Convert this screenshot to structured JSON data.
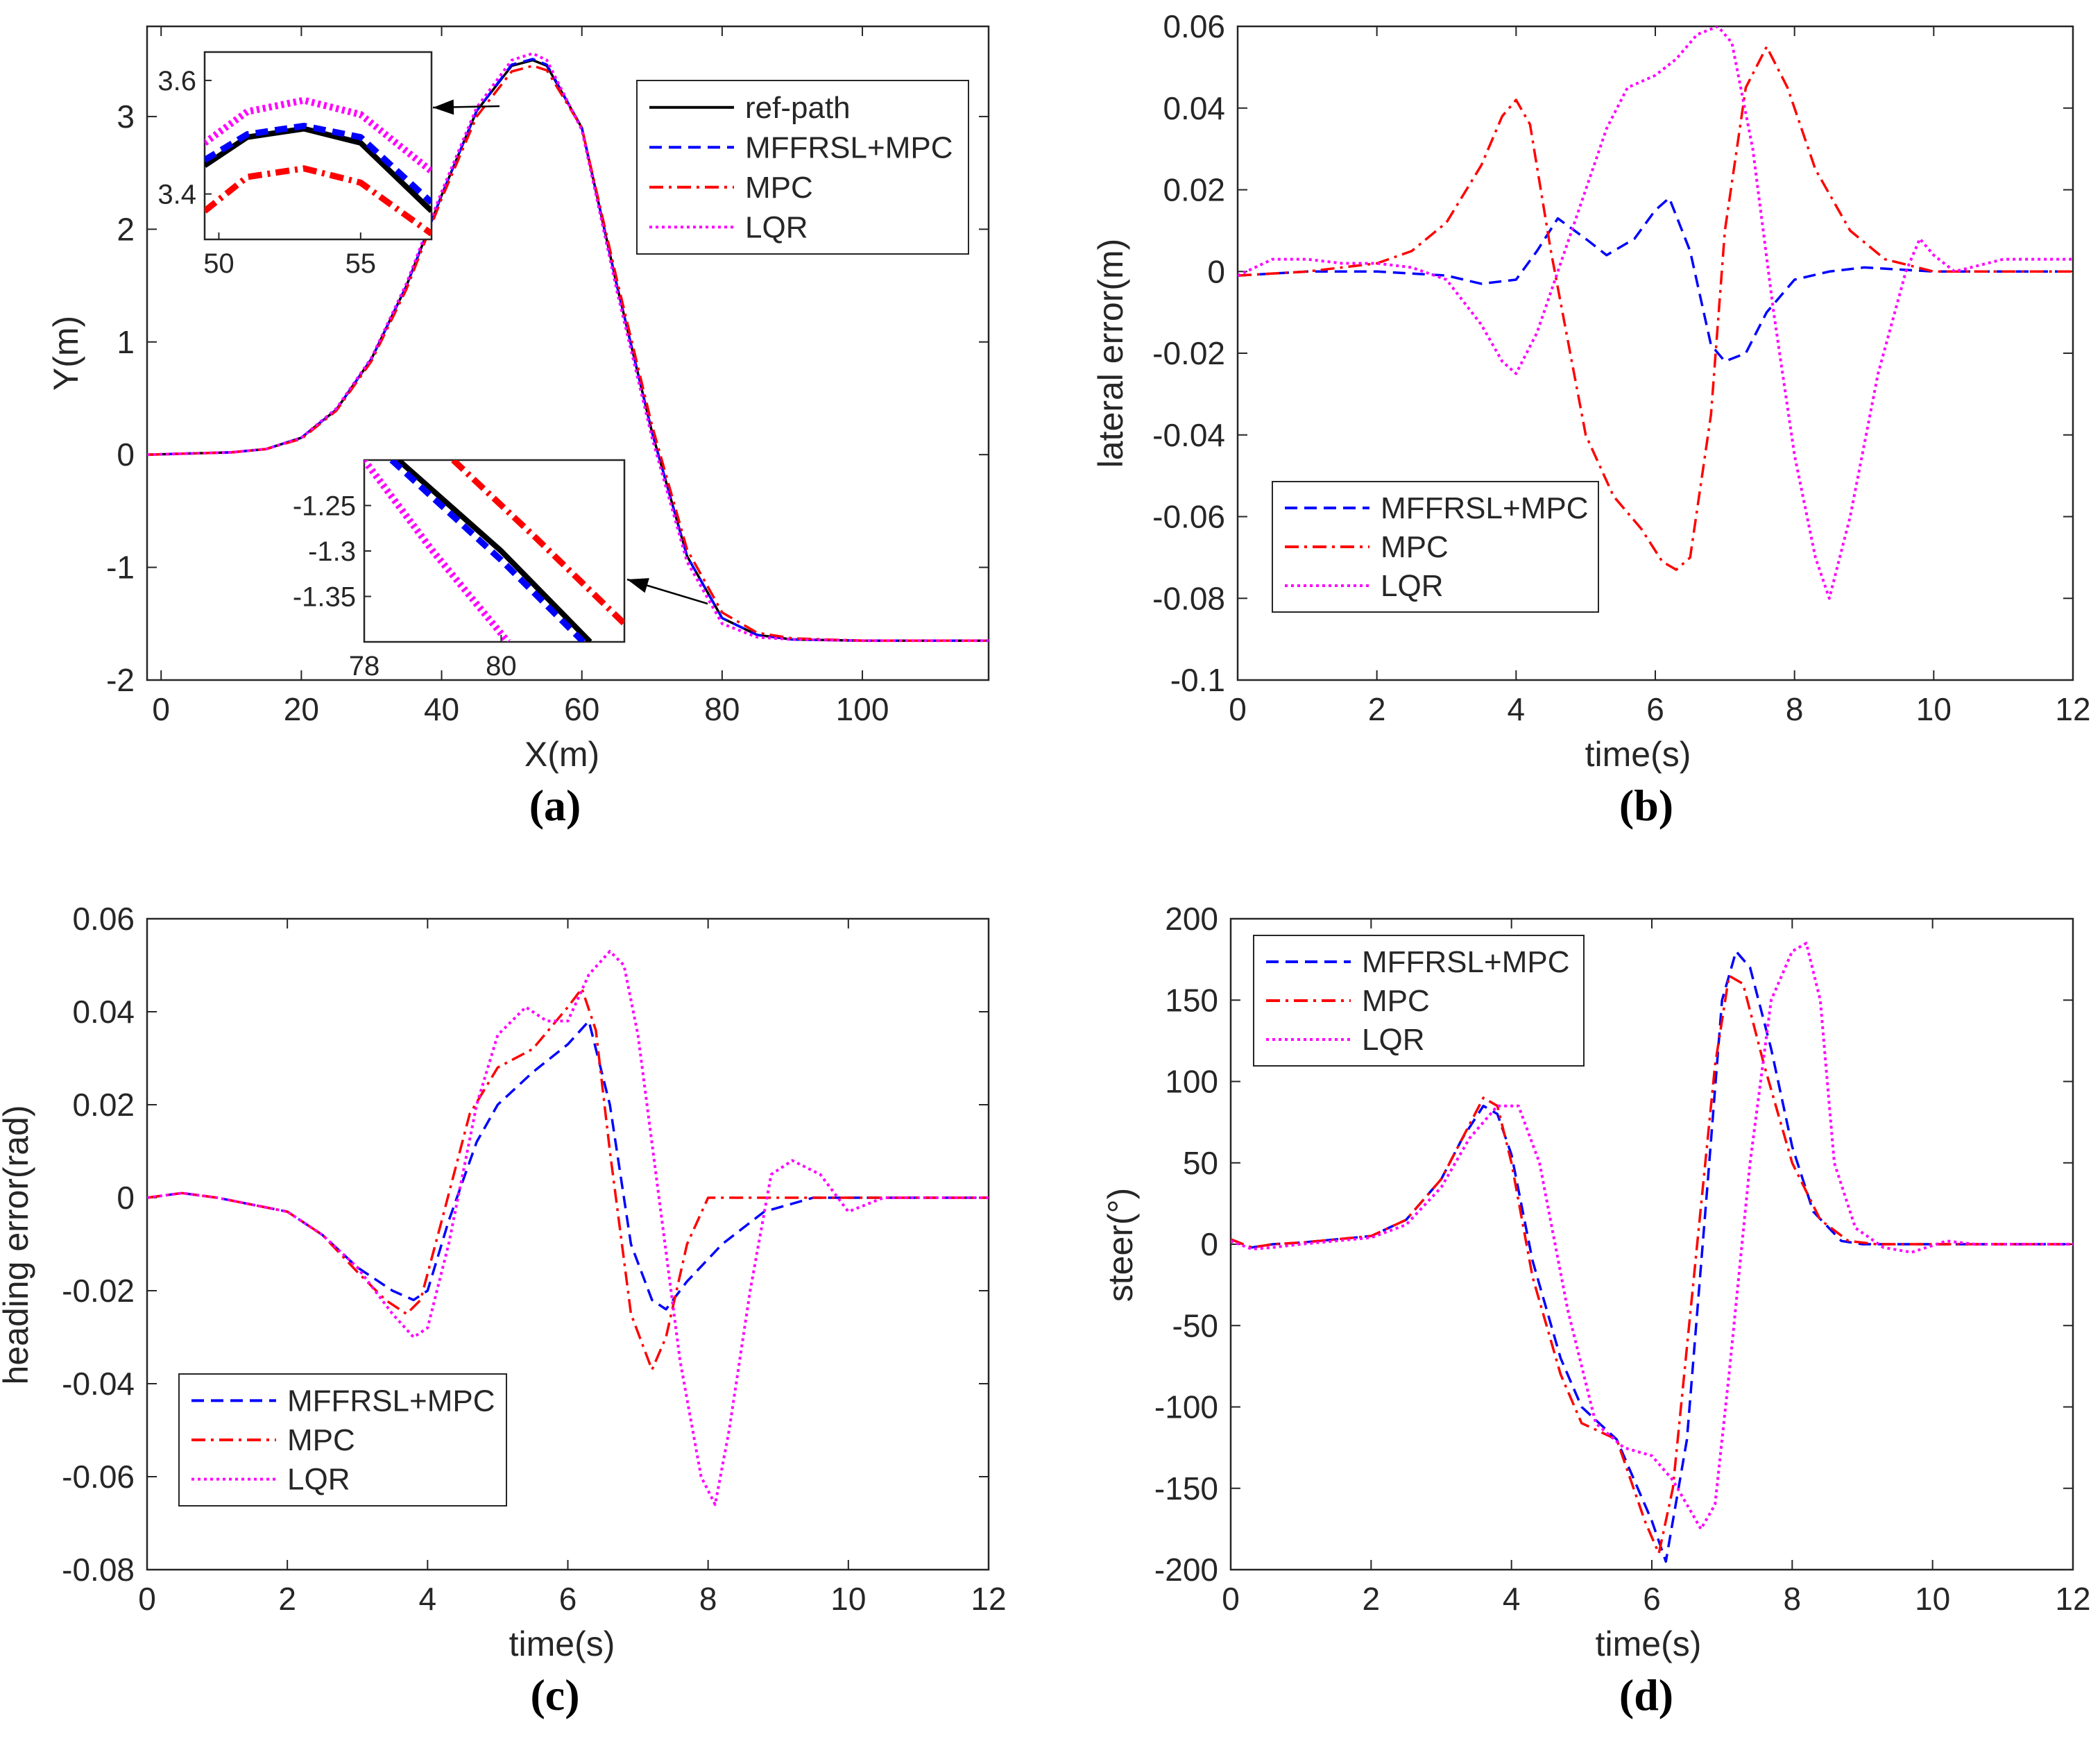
{
  "colors": {
    "ref": "#000000",
    "mffrsl": "#0000ff",
    "mpc": "#ff0000",
    "lqr": "#ff00ff",
    "axis": "#262626"
  },
  "chart_data": [
    {
      "id": "a",
      "type": "line",
      "caption": "(a)",
      "xlabel": "X(m)",
      "ylabel": "Y(m)",
      "xlim": [
        -2,
        118
      ],
      "ylim": [
        -2,
        3.8
      ],
      "xticks": [
        0,
        20,
        40,
        60,
        80,
        100
      ],
      "yticks": [
        -2,
        -1,
        0,
        1,
        2,
        3
      ],
      "legend": [
        "ref-path",
        "MFFRSL+MPC",
        "MPC",
        "LQR"
      ],
      "legend_position": "top-right",
      "series": [
        {
          "name": "ref-path",
          "x": [
            -2,
            10,
            15,
            20,
            25,
            30,
            35,
            40,
            45,
            50,
            53,
            55,
            60,
            65,
            70,
            75,
            80,
            85,
            90,
            100,
            118
          ],
          "y": [
            0,
            0.02,
            0.05,
            0.15,
            0.4,
            0.85,
            1.5,
            2.3,
            3.05,
            3.45,
            3.5,
            3.45,
            2.9,
            1.5,
            0.2,
            -0.9,
            -1.45,
            -1.6,
            -1.64,
            -1.65,
            -1.65
          ]
        },
        {
          "name": "MFFRSL+MPC",
          "x": [
            -2,
            10,
            15,
            20,
            25,
            30,
            35,
            40,
            45,
            50,
            53,
            55,
            60,
            65,
            70,
            75,
            80,
            85,
            90,
            100,
            118
          ],
          "y": [
            0,
            0.02,
            0.05,
            0.15,
            0.4,
            0.85,
            1.5,
            2.3,
            3.05,
            3.46,
            3.51,
            3.46,
            2.9,
            1.5,
            0.2,
            -0.9,
            -1.45,
            -1.6,
            -1.64,
            -1.65,
            -1.65
          ]
        },
        {
          "name": "MPC",
          "x": [
            -2,
            10,
            15,
            20,
            25,
            30,
            35,
            40,
            45,
            50,
            53,
            55,
            60,
            65,
            70,
            75,
            80,
            85,
            90,
            100,
            118
          ],
          "y": [
            0,
            0.02,
            0.05,
            0.14,
            0.39,
            0.83,
            1.47,
            2.27,
            3.0,
            3.4,
            3.45,
            3.41,
            2.9,
            1.55,
            0.26,
            -0.84,
            -1.4,
            -1.58,
            -1.63,
            -1.65,
            -1.65
          ]
        },
        {
          "name": "LQR",
          "x": [
            -2,
            10,
            15,
            20,
            25,
            30,
            35,
            40,
            45,
            50,
            53,
            55,
            60,
            65,
            70,
            75,
            80,
            85,
            90,
            100,
            118
          ],
          "y": [
            0,
            0.02,
            0.05,
            0.15,
            0.41,
            0.86,
            1.52,
            2.33,
            3.08,
            3.5,
            3.56,
            3.5,
            2.88,
            1.45,
            0.15,
            -0.95,
            -1.5,
            -1.62,
            -1.64,
            -1.65,
            -1.65
          ]
        }
      ],
      "insets": [
        {
          "xlim": [
            49.5,
            57.5
          ],
          "ylim": [
            3.32,
            3.65
          ],
          "xticks": [
            50,
            55
          ],
          "yticks": [
            3.4,
            3.6
          ],
          "series": [
            {
              "name": "ref-path",
              "x": [
                49.5,
                51,
                53,
                55,
                57.5
              ],
              "y": [
                3.45,
                3.5,
                3.515,
                3.49,
                3.37
              ]
            },
            {
              "name": "MFFRSL+MPC",
              "x": [
                49.5,
                51,
                53,
                55,
                57.5
              ],
              "y": [
                3.46,
                3.505,
                3.52,
                3.5,
                3.385
              ]
            },
            {
              "name": "MPC",
              "x": [
                49.5,
                51,
                53,
                55,
                57.5
              ],
              "y": [
                3.37,
                3.43,
                3.445,
                3.42,
                3.33
              ]
            },
            {
              "name": "LQR",
              "x": [
                49.5,
                51,
                53,
                55,
                57.5
              ],
              "y": [
                3.49,
                3.545,
                3.565,
                3.54,
                3.44
              ]
            }
          ]
        },
        {
          "xlim": [
            78,
            81.8
          ],
          "ylim": [
            -1.4,
            -1.2
          ],
          "xticks": [
            78,
            80
          ],
          "yticks": [
            -1.25,
            -1.3,
            -1.35
          ],
          "series": [
            {
              "name": "ref-path",
              "x": [
                78.5,
                80,
                81.3
              ],
              "y": [
                -1.2,
                -1.3,
                -1.4
              ]
            },
            {
              "name": "MFFRSL+MPC",
              "x": [
                78.4,
                80,
                81.2
              ],
              "y": [
                -1.2,
                -1.31,
                -1.4
              ]
            },
            {
              "name": "MPC",
              "x": [
                79.3,
                80.5,
                81.8
              ],
              "y": [
                -1.2,
                -1.285,
                -1.38
              ]
            },
            {
              "name": "LQR",
              "x": [
                78,
                79,
                80.1
              ],
              "y": [
                -1.2,
                -1.3,
                -1.4
              ]
            }
          ]
        }
      ]
    },
    {
      "id": "b",
      "type": "line",
      "caption": "(b)",
      "xlabel": "time(s)",
      "ylabel": "lateral error(m)",
      "xlim": [
        0,
        12
      ],
      "ylim": [
        -0.1,
        0.06
      ],
      "xticks": [
        0,
        2,
        4,
        6,
        8,
        10,
        12
      ],
      "yticks": [
        -0.1,
        -0.08,
        -0.06,
        -0.04,
        -0.02,
        0,
        0.02,
        0.04,
        0.06
      ],
      "legend": [
        "MFFRSL+MPC",
        "MPC",
        "LQR"
      ],
      "legend_position": "lower-left",
      "series": [
        {
          "name": "MFFRSL+MPC",
          "x": [
            0,
            1,
            2,
            3,
            3.5,
            4,
            4.3,
            4.6,
            5,
            5.3,
            5.7,
            6,
            6.2,
            6.5,
            6.8,
            7,
            7.3,
            7.6,
            8,
            8.5,
            9,
            10,
            12
          ],
          "y": [
            -0.001,
            0,
            0,
            -0.001,
            -0.003,
            -0.002,
            0.005,
            0.013,
            0.008,
            0.004,
            0.008,
            0.015,
            0.018,
            0.005,
            -0.018,
            -0.022,
            -0.02,
            -0.01,
            -0.002,
            0,
            0.001,
            0,
            0
          ]
        },
        {
          "name": "MPC",
          "x": [
            0,
            1,
            2,
            2.5,
            3,
            3.5,
            3.8,
            4,
            4.2,
            4.5,
            5,
            5.4,
            5.8,
            6.1,
            6.3,
            6.5,
            6.8,
            7,
            7.3,
            7.6,
            7.9,
            8.3,
            8.8,
            9.3,
            10,
            12
          ],
          "y": [
            -0.001,
            0,
            0.002,
            0.005,
            0.012,
            0.026,
            0.038,
            0.042,
            0.036,
            0.005,
            -0.04,
            -0.055,
            -0.063,
            -0.071,
            -0.073,
            -0.07,
            -0.035,
            0.01,
            0.045,
            0.055,
            0.045,
            0.025,
            0.01,
            0.003,
            0,
            0
          ]
        },
        {
          "name": "LQR",
          "x": [
            0,
            0.5,
            1,
            1.5,
            2,
            2.5,
            3,
            3.5,
            3.8,
            4,
            4.3,
            4.8,
            5.3,
            5.6,
            6,
            6.3,
            6.6,
            6.9,
            7.1,
            7.4,
            7.7,
            8,
            8.3,
            8.5,
            8.8,
            9.2,
            9.6,
            9.8,
            10,
            10.3,
            11,
            12
          ],
          "y": [
            -0.001,
            0.003,
            0.003,
            0.002,
            0.002,
            0.001,
            -0.002,
            -0.013,
            -0.022,
            -0.025,
            -0.015,
            0.01,
            0.035,
            0.045,
            0.048,
            0.052,
            0.058,
            0.06,
            0.056,
            0.03,
            -0.01,
            -0.045,
            -0.07,
            -0.08,
            -0.06,
            -0.025,
            0,
            0.008,
            0.004,
            0,
            0.003,
            0.003
          ]
        }
      ]
    },
    {
      "id": "c",
      "type": "line",
      "caption": "(c)",
      "xlabel": "time(s)",
      "ylabel": "heading error(rad)",
      "xlim": [
        0,
        12
      ],
      "ylim": [
        -0.08,
        0.06
      ],
      "xticks": [
        0,
        2,
        4,
        6,
        8,
        10,
        12
      ],
      "yticks": [
        -0.08,
        -0.06,
        -0.04,
        -0.02,
        0,
        0.02,
        0.04,
        0.06
      ],
      "legend": [
        "MFFRSL+MPC",
        "MPC",
        "LQR"
      ],
      "legend_position": "lower-left",
      "series": [
        {
          "name": "MFFRSL+MPC",
          "x": [
            0,
            0.5,
            1,
            2,
            2.5,
            3,
            3.5,
            3.8,
            4,
            4.3,
            4.7,
            5,
            5.5,
            6,
            6.3,
            6.6,
            6.9,
            7.2,
            7.4,
            7.7,
            8.2,
            8.8,
            9.5,
            10,
            12
          ],
          "y": [
            0,
            0.001,
            0,
            -0.003,
            -0.008,
            -0.015,
            -0.02,
            -0.022,
            -0.02,
            -0.005,
            0.012,
            0.02,
            0.027,
            0.033,
            0.038,
            0.02,
            -0.01,
            -0.022,
            -0.024,
            -0.018,
            -0.01,
            -0.003,
            0,
            0,
            0
          ]
        },
        {
          "name": "MPC",
          "x": [
            0,
            0.5,
            1,
            2,
            2.5,
            3,
            3.4,
            3.7,
            3.9,
            4.2,
            4.6,
            5,
            5.5,
            6,
            6.2,
            6.4,
            6.6,
            6.9,
            7.2,
            7.4,
            7.7,
            8,
            8.5,
            9,
            12
          ],
          "y": [
            0,
            0.001,
            0,
            -0.003,
            -0.008,
            -0.016,
            -0.022,
            -0.025,
            -0.022,
            -0.005,
            0.018,
            0.028,
            0.032,
            0.041,
            0.045,
            0.036,
            0.01,
            -0.025,
            -0.037,
            -0.03,
            -0.01,
            0,
            0,
            0,
            0
          ]
        },
        {
          "name": "LQR",
          "x": [
            0,
            0.5,
            1,
            2,
            2.5,
            3,
            3.5,
            3.8,
            4,
            4.3,
            4.7,
            5,
            5.4,
            5.7,
            6,
            6.3,
            6.6,
            6.8,
            7,
            7.3,
            7.6,
            7.9,
            8.1,
            8.3,
            8.6,
            8.9,
            9.2,
            9.6,
            10,
            10.5,
            12
          ],
          "y": [
            0,
            0.001,
            0,
            -0.003,
            -0.008,
            -0.015,
            -0.025,
            -0.03,
            -0.028,
            -0.01,
            0.02,
            0.035,
            0.041,
            0.038,
            0.038,
            0.048,
            0.053,
            0.05,
            0.035,
            0,
            -0.035,
            -0.06,
            -0.066,
            -0.05,
            -0.02,
            0.005,
            0.008,
            0.005,
            -0.003,
            0,
            0
          ]
        }
      ]
    },
    {
      "id": "d",
      "type": "line",
      "caption": "(d)",
      "xlabel": "time(s)",
      "ylabel": "steer(°)",
      "xlim": [
        0,
        12
      ],
      "ylim": [
        -200,
        200
      ],
      "xticks": [
        0,
        2,
        4,
        6,
        8,
        10,
        12
      ],
      "yticks": [
        -200,
        -150,
        -100,
        -50,
        0,
        50,
        100,
        150,
        200
      ],
      "legend": [
        "MFFRSL+MPC",
        "MPC",
        "LQR"
      ],
      "legend_position": "top-left",
      "series": [
        {
          "name": "MFFRSL+MPC",
          "x": [
            0,
            0.3,
            0.6,
            1,
            2,
            2.5,
            3,
            3.3,
            3.6,
            3.8,
            4,
            4.3,
            4.7,
            5,
            5.5,
            6,
            6.2,
            6.5,
            6.8,
            7,
            7.2,
            7.4,
            7.7,
            8,
            8.3,
            8.7,
            9,
            10,
            12
          ],
          "y": [
            3,
            -2,
            0,
            1,
            5,
            15,
            40,
            65,
            85,
            80,
            55,
            -10,
            -70,
            -100,
            -120,
            -170,
            -195,
            -120,
            40,
            150,
            180,
            170,
            120,
            60,
            20,
            2,
            0,
            0,
            0
          ]
        },
        {
          "name": "MPC",
          "x": [
            0,
            0.3,
            0.6,
            1,
            2,
            2.5,
            3,
            3.3,
            3.6,
            3.8,
            4,
            4.3,
            4.7,
            5,
            5.5,
            5.9,
            6.1,
            6.3,
            6.6,
            6.9,
            7.1,
            7.3,
            7.6,
            8,
            8.4,
            8.8,
            9.2,
            10,
            12
          ],
          "y": [
            3,
            -2,
            0,
            1,
            5,
            15,
            40,
            65,
            90,
            85,
            50,
            -20,
            -80,
            -110,
            -120,
            -170,
            -190,
            -150,
            -20,
            110,
            165,
            160,
            110,
            50,
            15,
            2,
            0,
            0,
            0
          ]
        },
        {
          "name": "LQR",
          "x": [
            0,
            0.3,
            0.6,
            1,
            2,
            2.5,
            3,
            3.4,
            3.8,
            4.1,
            4.4,
            4.8,
            5.2,
            5.6,
            6,
            6.3,
            6.5,
            6.7,
            6.9,
            7.1,
            7.4,
            7.7,
            8,
            8.2,
            8.4,
            8.6,
            8.9,
            9.3,
            9.7,
            10.2,
            10.6,
            12
          ],
          "y": [
            2,
            -3,
            -2,
            0,
            4,
            12,
            35,
            65,
            85,
            85,
            50,
            -40,
            -110,
            -125,
            -130,
            -145,
            -160,
            -175,
            -160,
            -80,
            50,
            150,
            180,
            185,
            150,
            50,
            10,
            -2,
            -5,
            2,
            0,
            0
          ]
        }
      ]
    }
  ]
}
